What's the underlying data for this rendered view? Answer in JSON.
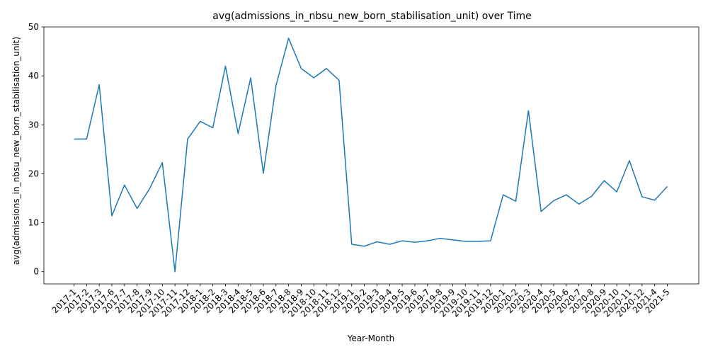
{
  "chart_data": {
    "type": "line",
    "title": "avg(admissions_in_nbsu_new_born_stabilisation_unit) over Time",
    "xlabel": "Year-Month",
    "ylabel": "avg(admissions_in_nbsu_new_born_stabilisation_unit)",
    "ylim": [
      -2.5,
      50
    ],
    "yticks": [
      0,
      10,
      20,
      30,
      40,
      50
    ],
    "grid": false,
    "color": "#1f77b4",
    "categories": [
      "2017-1",
      "2017-2",
      "2017-3",
      "2017-6",
      "2017-7",
      "2017-8",
      "2017-9",
      "2017-10",
      "2017-11",
      "2017-12",
      "2018-1",
      "2018-2",
      "2018-3",
      "2018-4",
      "2018-5",
      "2018-6",
      "2018-7",
      "2018-8",
      "2018-9",
      "2018-10",
      "2018-11",
      "2018-12",
      "2019-1",
      "2019-2",
      "2019-3",
      "2019-4",
      "2019-5",
      "2019-6",
      "2019-7",
      "2019-8",
      "2019-9",
      "2019-10",
      "2019-11",
      "2019-12",
      "2020-1",
      "2020-2",
      "2020-3",
      "2020-4",
      "2020-5",
      "2020-6",
      "2020-7",
      "2020-8",
      "2020-9",
      "2020-10",
      "2020-11",
      "2020-12",
      "2021-4",
      "2021-5"
    ],
    "values": [
      27.1,
      27.1,
      38.2,
      11.4,
      17.7,
      12.9,
      17.0,
      22.3,
      0.0,
      27.1,
      30.7,
      29.4,
      42.0,
      28.2,
      39.6,
      20.1,
      38.0,
      47.7,
      41.5,
      39.6,
      41.5,
      39.1,
      5.6,
      5.2,
      6.1,
      5.6,
      6.3,
      6.0,
      6.3,
      6.8,
      6.5,
      6.2,
      6.2,
      6.3,
      15.7,
      14.4,
      32.9,
      12.3,
      14.5,
      15.7,
      13.8,
      15.4,
      18.6,
      16.3,
      22.7,
      15.3,
      14.6,
      17.4
    ]
  }
}
